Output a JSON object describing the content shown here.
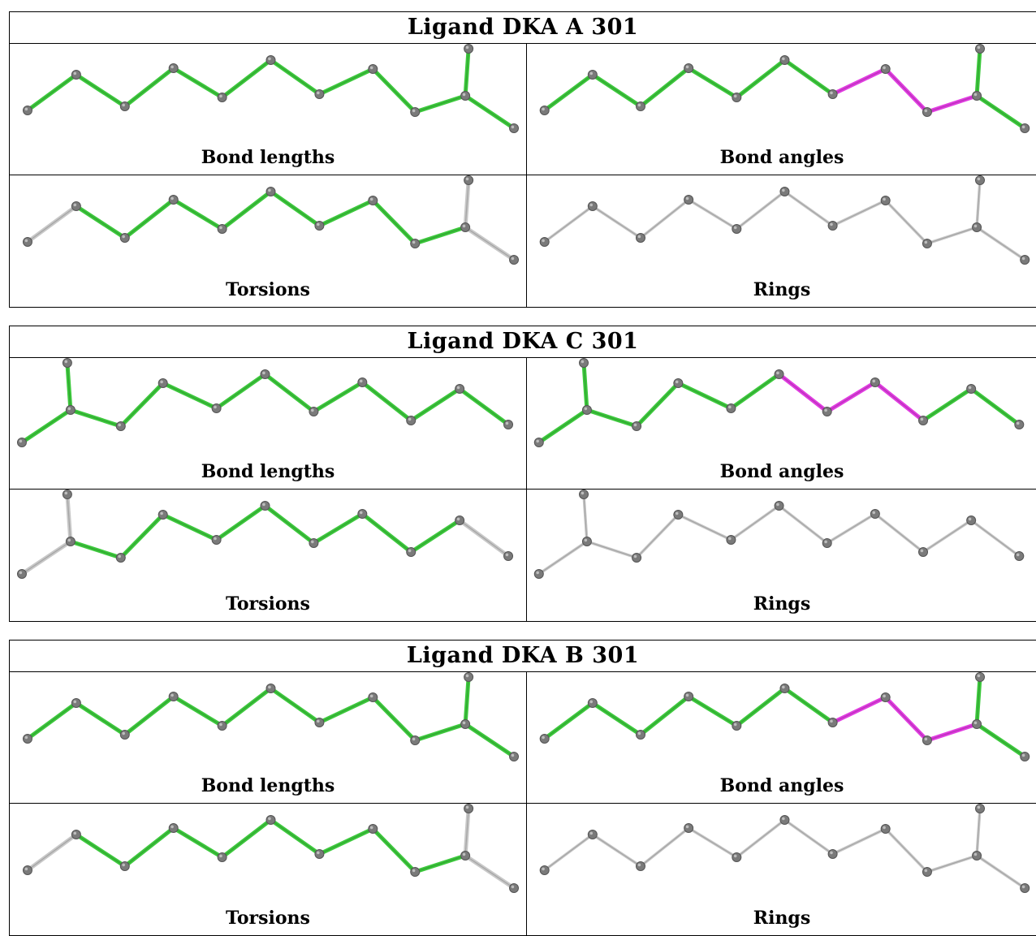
{
  "colors": {
    "normal": "#3cc83c",
    "outlier": "#e03ce0",
    "unchecked": "#c8c8c8",
    "atom": "#7a7a7a"
  },
  "ligands": [
    {
      "title": "Ligand DKA A 301",
      "orientation": "tail-right",
      "panels": [
        {
          "label": "Bond lengths",
          "highlight": "all",
          "outlier_bonds": []
        },
        {
          "label": "Bond angles",
          "highlight": "all",
          "outlier_bonds": [
            6,
            7,
            8
          ]
        },
        {
          "label": "Torsions",
          "highlight": "torsion",
          "outlier_bonds": []
        },
        {
          "label": "Rings",
          "highlight": "none",
          "outlier_bonds": []
        }
      ]
    },
    {
      "title": "Ligand DKA C 301",
      "orientation": "tail-left",
      "panels": [
        {
          "label": "Bond lengths",
          "highlight": "all",
          "outlier_bonds": []
        },
        {
          "label": "Bond angles",
          "highlight": "all",
          "outlier_bonds": [
            2,
            3,
            4
          ]
        },
        {
          "label": "Torsions",
          "highlight": "torsion",
          "outlier_bonds": []
        },
        {
          "label": "Rings",
          "highlight": "none",
          "outlier_bonds": []
        }
      ]
    },
    {
      "title": "Ligand DKA B 301",
      "orientation": "tail-right",
      "panels": [
        {
          "label": "Bond lengths",
          "highlight": "all",
          "outlier_bonds": []
        },
        {
          "label": "Bond angles",
          "highlight": "all",
          "outlier_bonds": [
            6,
            7,
            8
          ]
        },
        {
          "label": "Torsions",
          "highlight": "torsion",
          "outlier_bonds": []
        },
        {
          "label": "Rings",
          "highlight": "none",
          "outlier_bonds": []
        }
      ]
    }
  ]
}
